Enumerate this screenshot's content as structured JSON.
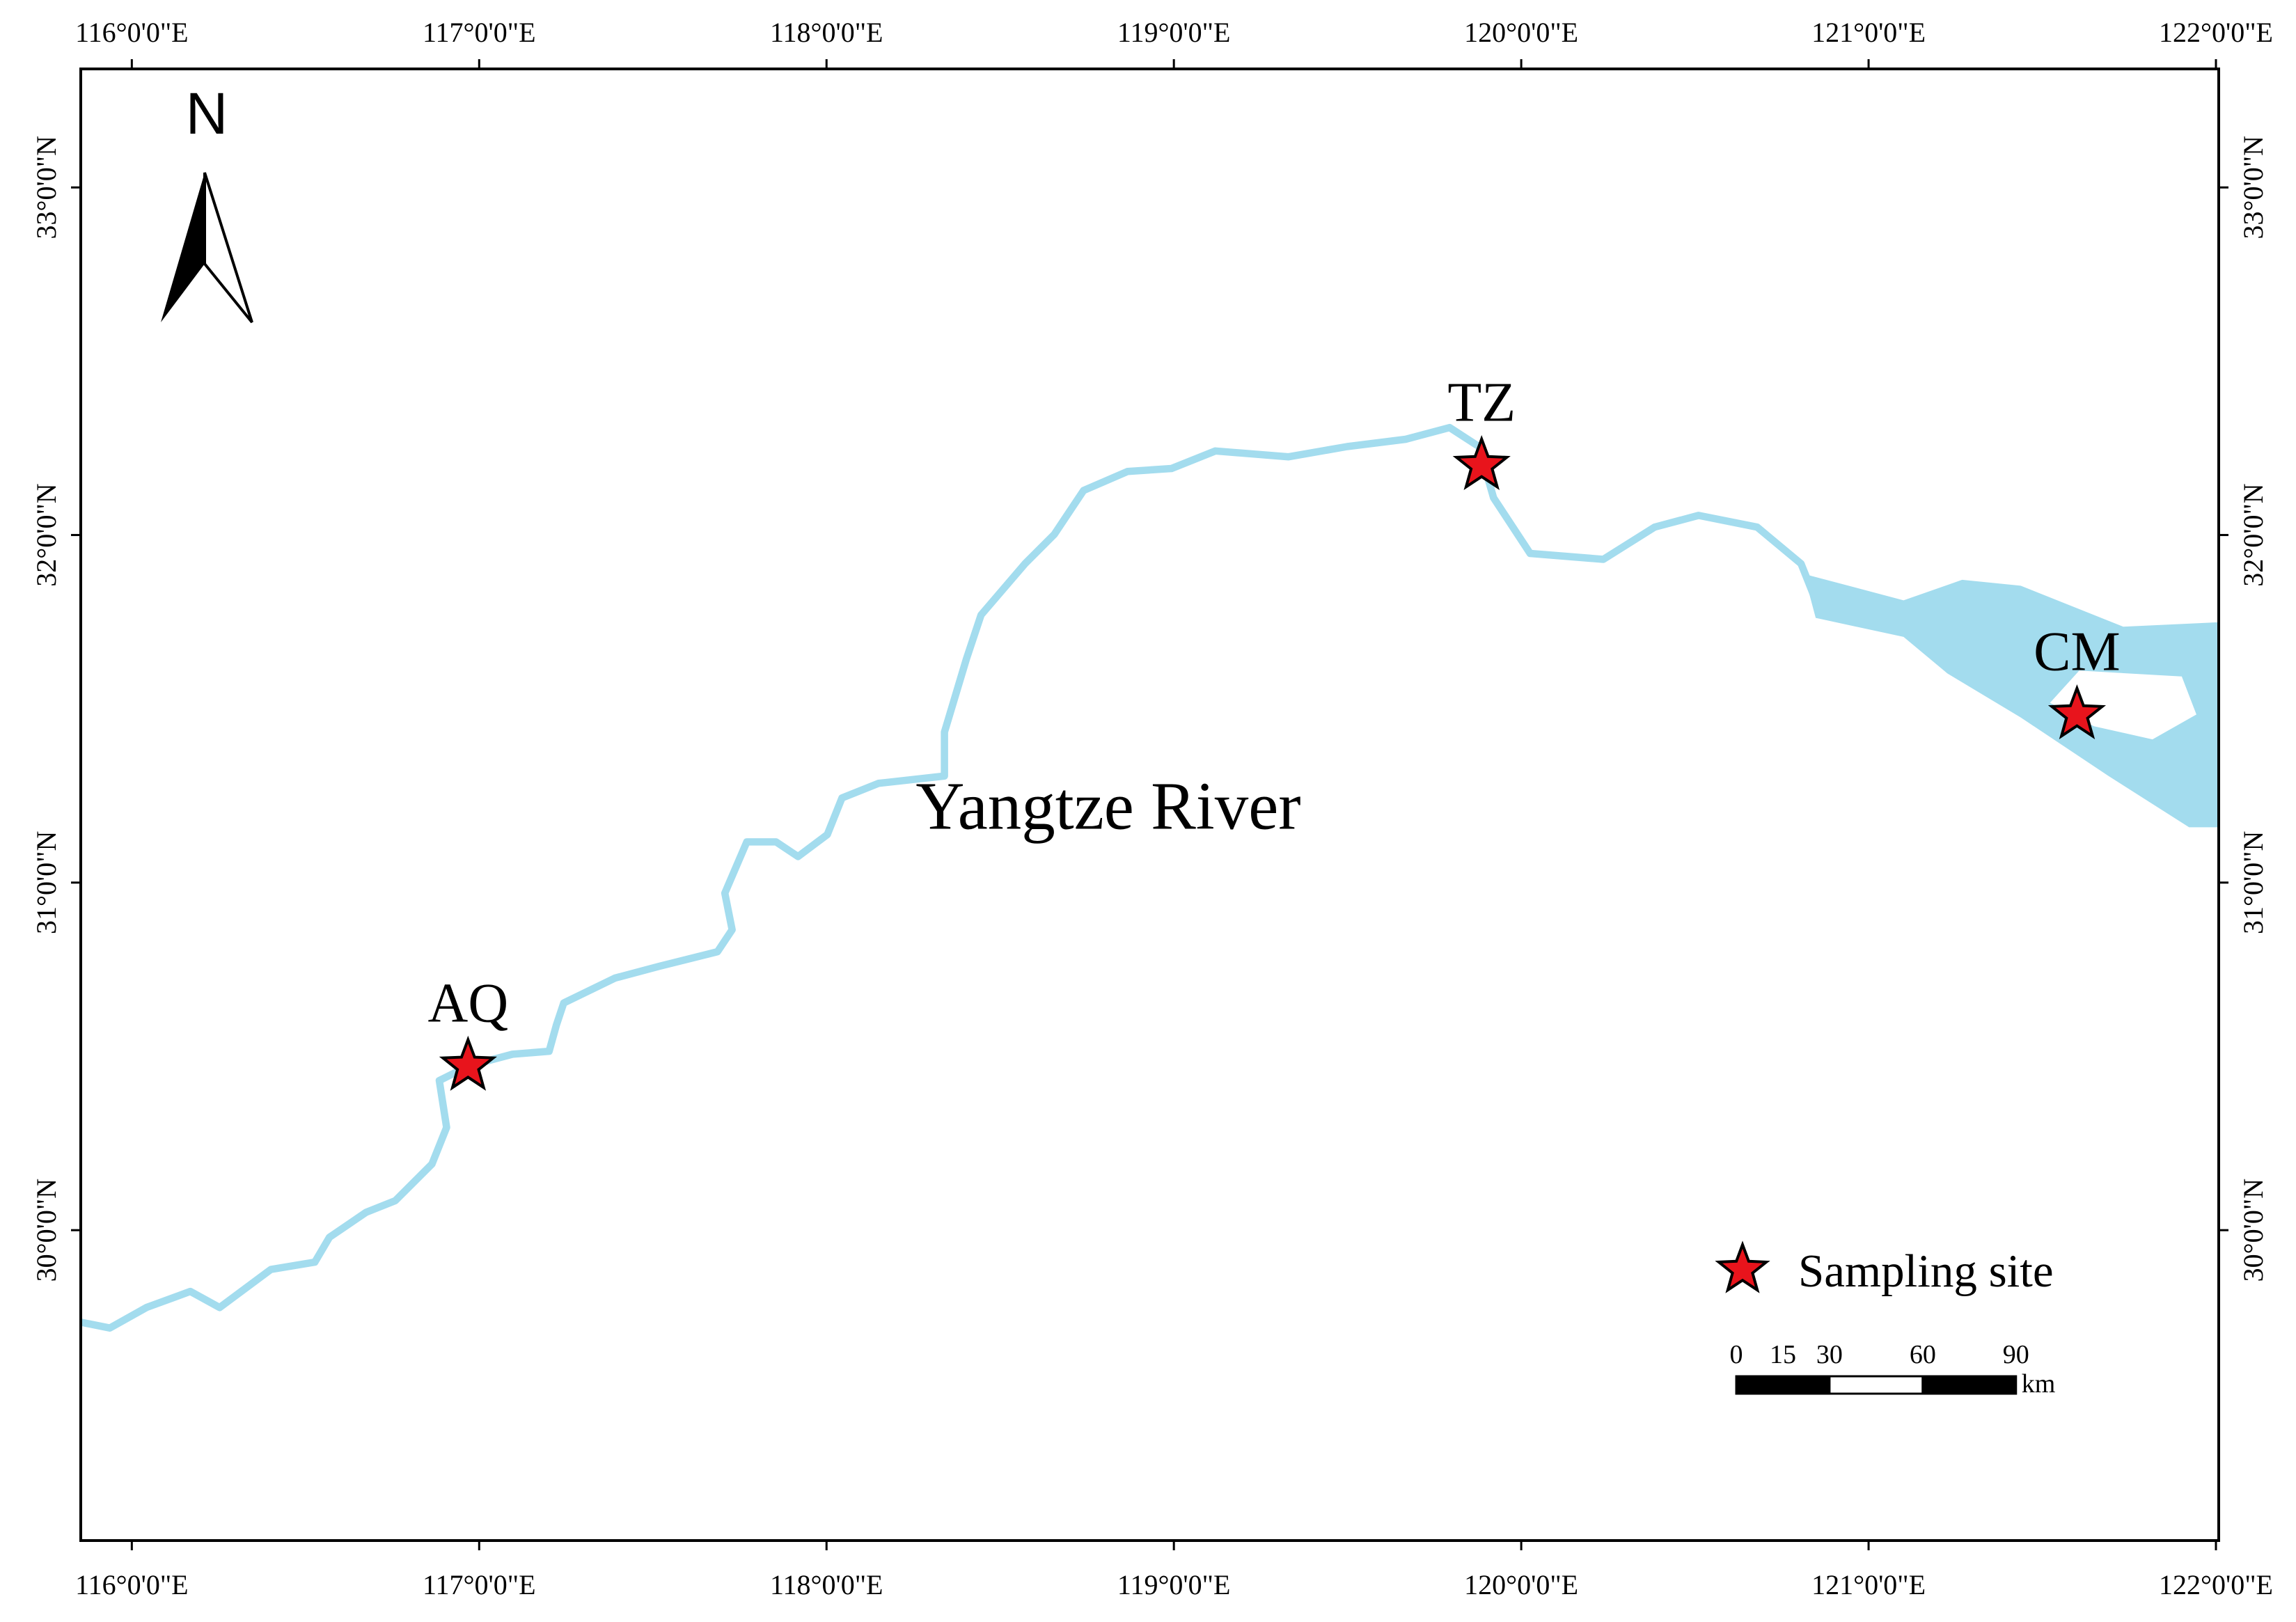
{
  "map": {
    "north_label": "N",
    "river_label": "Yangtze River",
    "xlim": [
      115.853,
      122.008
    ],
    "ylim": [
      29.107,
      33.341
    ],
    "lon_ticks": [
      {
        "value": 116,
        "label": "116°0'0\"E"
      },
      {
        "value": 117,
        "label": "117°0'0\"E"
      },
      {
        "value": 118,
        "label": "118°0'0\"E"
      },
      {
        "value": 119,
        "label": "119°0'0\"E"
      },
      {
        "value": 120,
        "label": "120°0'0\"E"
      },
      {
        "value": 121,
        "label": "121°0'0\"E"
      },
      {
        "value": 122,
        "label": "122°0'0\"E"
      }
    ],
    "lat_ticks": [
      {
        "value": 30,
        "label": "30°0'0\"N"
      },
      {
        "value": 31,
        "label": "31°0'0\"N"
      },
      {
        "value": 32,
        "label": "32°0'0\"N"
      },
      {
        "value": 33,
        "label": "33°0'0\"N"
      }
    ],
    "sites": [
      {
        "label": "AQ",
        "lon": 116.968,
        "lat": 30.472
      },
      {
        "label": "TZ",
        "lon": 119.886,
        "lat": 32.2
      },
      {
        "label": "CM",
        "lon": 121.6,
        "lat": 31.483
      }
    ],
    "site_color": "#e8141c",
    "legend": {
      "label": "Sampling site"
    },
    "scale_bar": {
      "ticks": [
        0,
        15,
        30,
        60,
        90
      ],
      "unit": "km",
      "segment_colors": [
        "#000000",
        "#000000",
        "#ffffff",
        "#000000"
      ]
    }
  }
}
